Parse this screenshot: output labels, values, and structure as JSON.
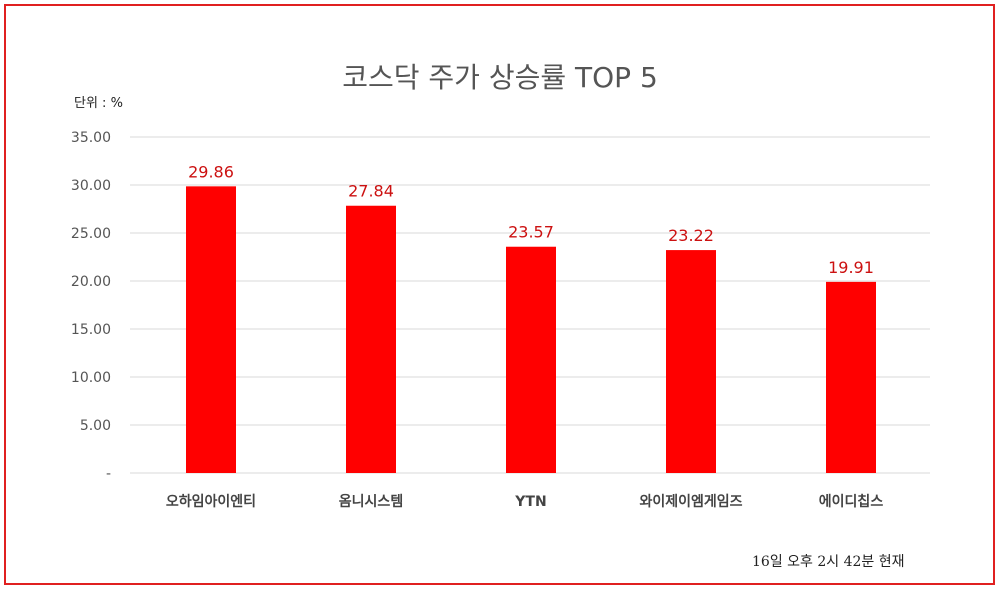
{
  "chart_data": {
    "type": "bar",
    "title": "코스닥 주가 상승률 TOP 5",
    "unit_label": "단위 : %",
    "categories": [
      "오하임아이엔티",
      "옴니시스템",
      "YTN",
      "와이제이엠게임즈",
      "에이디칩스"
    ],
    "values": [
      29.86,
      27.84,
      23.57,
      23.22,
      19.91
    ],
    "value_labels": [
      "29.86",
      "27.84",
      "23.57",
      "23.22",
      "19.91"
    ],
    "y_ticks": [
      "-",
      "5.00",
      "10.00",
      "15.00",
      "20.00",
      "25.00",
      "30.00",
      "35.00"
    ],
    "ylim": [
      0,
      35
    ],
    "grid": true,
    "bar_color": "#ff0000",
    "label_color": "#cc1111",
    "footnote": "16일 오후 2시 42분 현재"
  },
  "colors": {
    "border": "#e02020",
    "grid": "#d9d9d9"
  }
}
